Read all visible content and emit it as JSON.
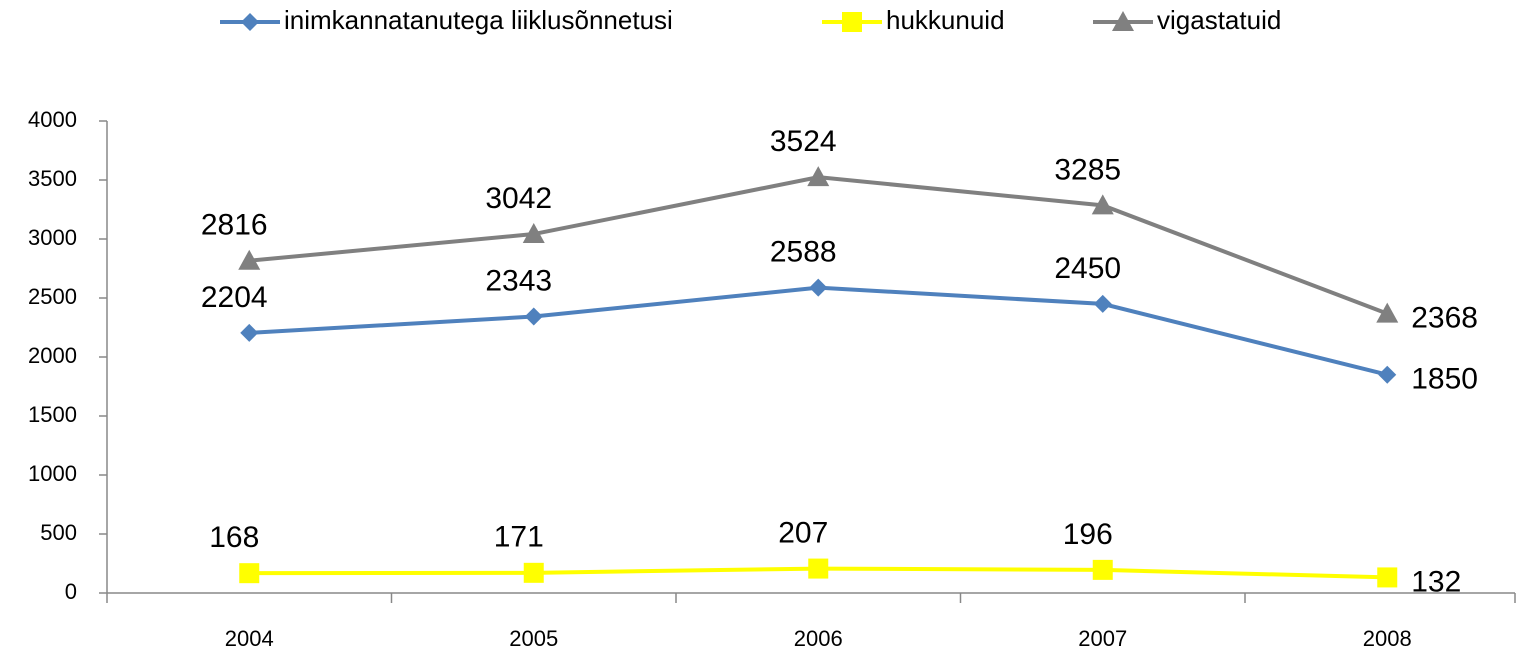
{
  "chart_data": {
    "type": "line",
    "categories": [
      "2004",
      "2005",
      "2006",
      "2007",
      "2008"
    ],
    "series": [
      {
        "name": "inimkannatanutega liiklusõnnetusi",
        "color": "#4f81bd",
        "marker": "diamond",
        "values": [
          2204,
          2343,
          2588,
          2450,
          1850
        ]
      },
      {
        "name": "hukkunuid",
        "color": "#ffff00",
        "marker": "square",
        "values": [
          168,
          171,
          207,
          196,
          132
        ]
      },
      {
        "name": "vigastatuid",
        "color": "#808080",
        "marker": "triangle",
        "values": [
          2816,
          3042,
          3524,
          3285,
          2368
        ]
      }
    ],
    "ylim": [
      0,
      4000
    ],
    "yticks": [
      0,
      500,
      1000,
      1500,
      2000,
      2500,
      3000,
      3500,
      4000
    ],
    "legend": "top",
    "grid": false
  }
}
